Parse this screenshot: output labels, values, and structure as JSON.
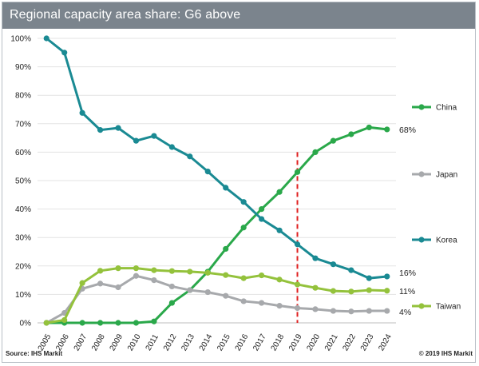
{
  "header": {
    "title": "Regional capacity area share: G6 above"
  },
  "footer": {
    "source": "Source: IHS Markit",
    "copyright": "© 2019 IHS Markit"
  },
  "chart_data": {
    "type": "line",
    "title": "Regional capacity area share: G6 above",
    "x": [
      "2005",
      "2006",
      "2007",
      "2008",
      "2009",
      "2010",
      "2011",
      "2012",
      "2013",
      "2014",
      "2015",
      "2016",
      "2017",
      "2018",
      "2019",
      "2020",
      "2021",
      "2022",
      "2023",
      "2024"
    ],
    "ylim": [
      0,
      100
    ],
    "yticks": [
      0,
      10,
      20,
      30,
      40,
      50,
      60,
      70,
      80,
      90,
      100
    ],
    "ytick_labels": [
      "0%",
      "10%",
      "20%",
      "30%",
      "40%",
      "50%",
      "60%",
      "70%",
      "80%",
      "90%",
      "100%"
    ],
    "grid": true,
    "legend": "right",
    "forecast_marker": {
      "x": "2019",
      "style": "dashed",
      "color": "#e02020"
    },
    "series": [
      {
        "name": "China",
        "color": "#2aa84a",
        "values": [
          0,
          0,
          0,
          0,
          0,
          0,
          0.5,
          7,
          11.5,
          18,
          26,
          33.5,
          40,
          46,
          53,
          60,
          64,
          66.3,
          68.7,
          68
        ],
        "end_label": "68%"
      },
      {
        "name": "Japan",
        "color": "#a7a9ac",
        "values": [
          0,
          3.5,
          12,
          13.8,
          12.5,
          16.5,
          15,
          12.8,
          11.5,
          10.8,
          9.5,
          7.6,
          7,
          6,
          5.2,
          4.8,
          4.2,
          4,
          4.2,
          4.2
        ],
        "end_label": "4%"
      },
      {
        "name": "Korea",
        "color": "#1a8a93",
        "values": [
          100,
          95,
          73.8,
          67.8,
          68.5,
          64,
          65.7,
          61.8,
          58.5,
          53.2,
          47.5,
          42.5,
          36.5,
          32.5,
          27.6,
          22.7,
          20.6,
          18.5,
          15.7,
          16.3
        ],
        "end_label": "16%"
      },
      {
        "name": "Taiwan",
        "color": "#94c23c",
        "values": [
          0,
          1,
          14,
          18.3,
          19.2,
          19.2,
          18.5,
          18.2,
          18,
          17.6,
          16.8,
          15.7,
          16.7,
          15.2,
          13.5,
          12.3,
          11.2,
          11,
          11.5,
          11.3
        ],
        "end_label": "11%"
      }
    ]
  }
}
